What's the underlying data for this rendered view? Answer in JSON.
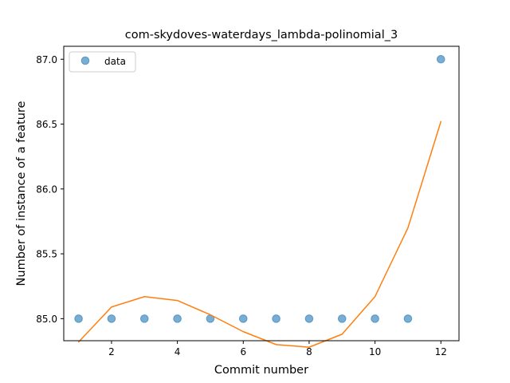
{
  "chart_data": {
    "type": "scatter",
    "title": "com-skydoves-waterdays_lambda-polinomial_3",
    "xlabel": "Commit number",
    "ylabel": "Number of instance of a feature",
    "xlim": [
      0.55,
      12.55
    ],
    "ylim": [
      84.83,
      87.1
    ],
    "xticks": [
      2,
      4,
      6,
      8,
      10,
      12
    ],
    "yticks": [
      85.0,
      85.5,
      86.0,
      86.5,
      87.0
    ],
    "ytick_labels": [
      "85.0",
      "85.5",
      "86.0",
      "86.5",
      "87.0"
    ],
    "grid": false,
    "legend_position": "top-left",
    "series": [
      {
        "name": "data",
        "kind": "scatter",
        "color": "#1f77b4",
        "x": [
          1,
          2,
          3,
          4,
          5,
          6,
          7,
          8,
          9,
          10,
          11,
          12
        ],
        "y": [
          85.0,
          85.0,
          85.0,
          85.0,
          85.0,
          85.0,
          85.0,
          85.0,
          85.0,
          85.0,
          85.0,
          87.0
        ]
      },
      {
        "kind": "line",
        "color": "#ff7f0e",
        "x": [
          1,
          2,
          3,
          4,
          5,
          6,
          7,
          8,
          9,
          10,
          11,
          12
        ],
        "y": [
          84.82,
          85.09,
          85.17,
          85.14,
          85.03,
          84.9,
          84.8,
          84.78,
          84.88,
          85.17,
          85.7,
          86.52
        ]
      }
    ]
  }
}
